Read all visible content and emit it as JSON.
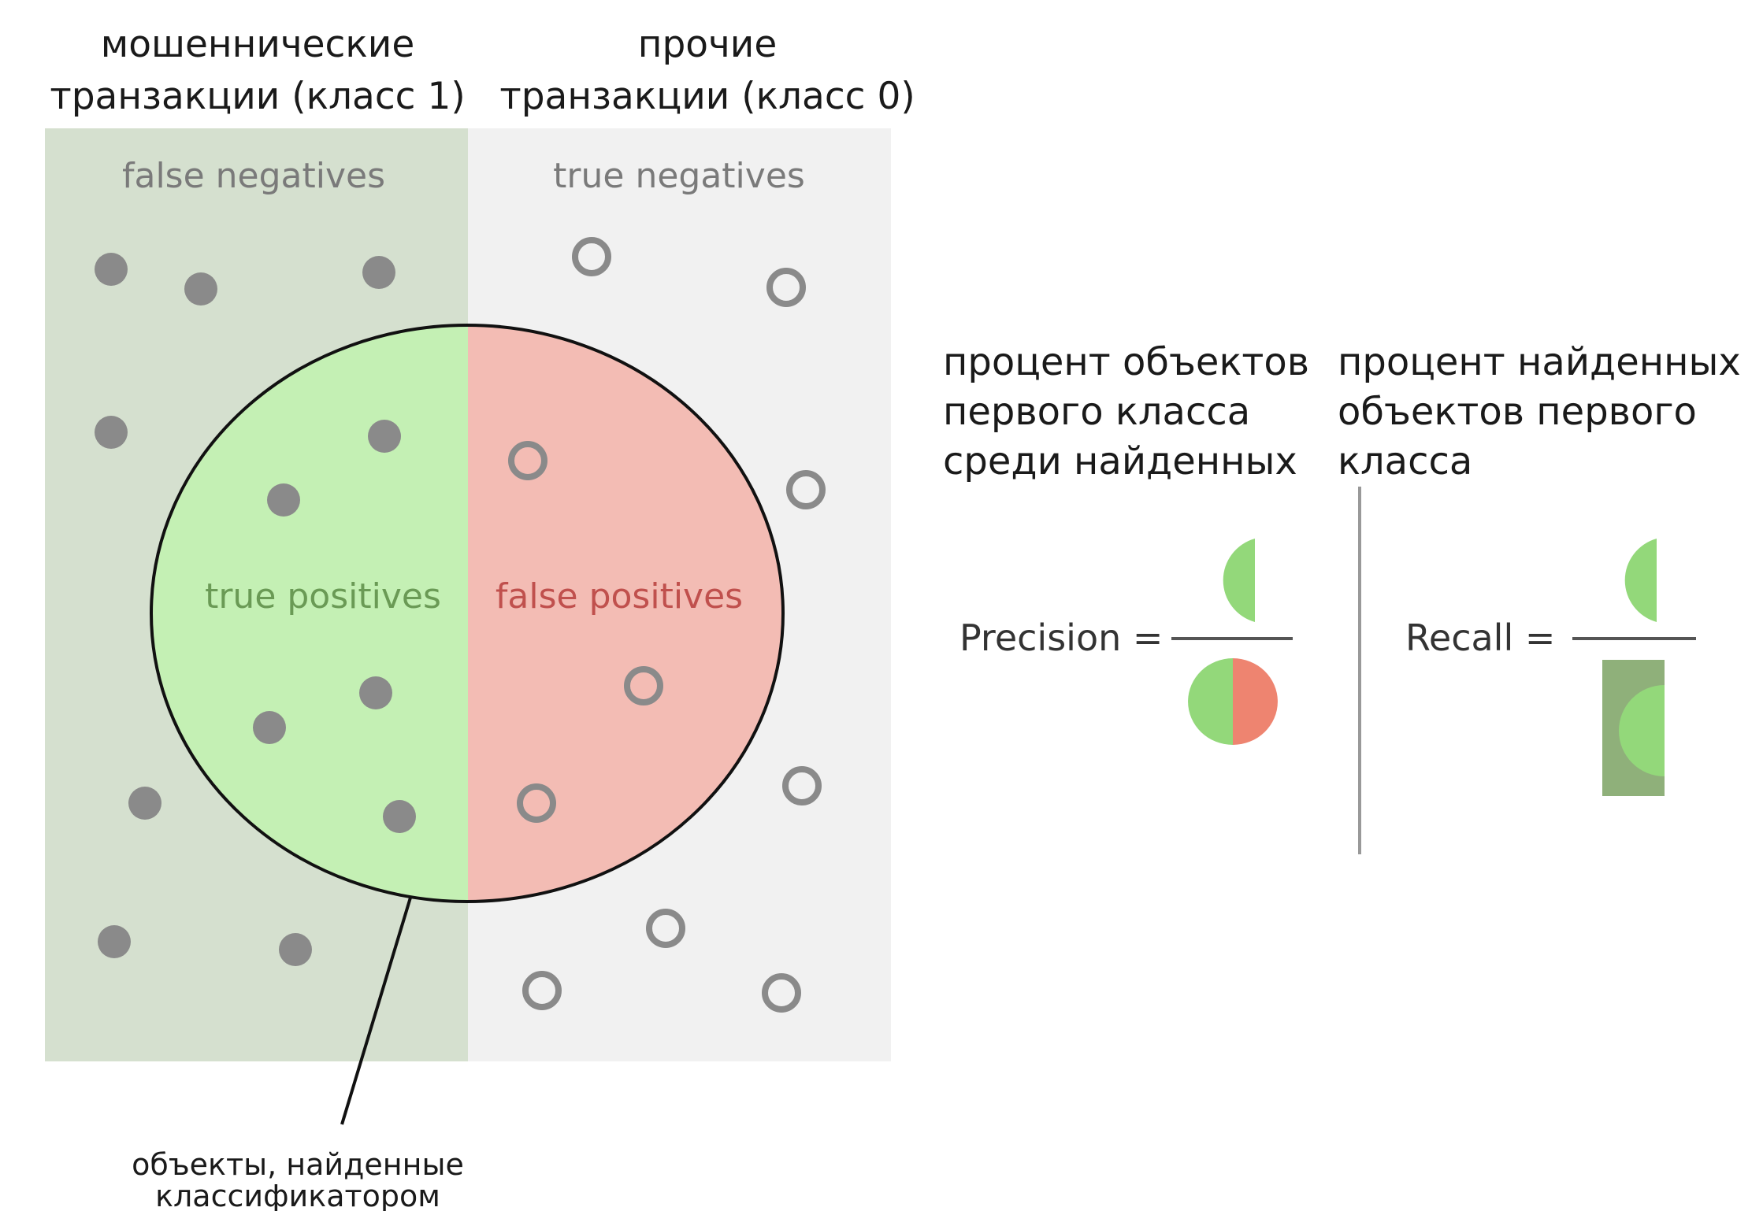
{
  "header": {
    "class1_line1": "мошеннические",
    "class1_line2": "транзакции (класс 1)",
    "class0_line1": "прочие",
    "class0_line2": "транзакции (класс 0)"
  },
  "regions": {
    "false_negatives": "false negatives",
    "true_negatives": "true negatives",
    "true_positives": "true positives",
    "false_positives": "false positives"
  },
  "selection_caption": {
    "line1": "объекты, найденные",
    "line2": "классификатором"
  },
  "precision": {
    "desc_line1": "процент объектов",
    "desc_line2": "первого класса",
    "desc_line3": "среди найденных",
    "label": "Precision ="
  },
  "recall": {
    "desc_line1": "процент найденных",
    "desc_line2": "объектов первого",
    "desc_line3": "класса",
    "label": "Recall ="
  },
  "colors": {
    "class1_background": "#d5e0cf",
    "class0_background": "#f1f1f1",
    "true_positive_fill": "#c4f0b4",
    "false_positive_fill": "#f3bcb4",
    "true_positive_text": "#6a9a55",
    "false_positive_text": "#c0504d",
    "region_text": "#7a7a7a",
    "point": "#8a8a8a",
    "icon_green": "#93d87a",
    "icon_red": "#ee8470",
    "icon_dark_green": "#8fb07a"
  }
}
